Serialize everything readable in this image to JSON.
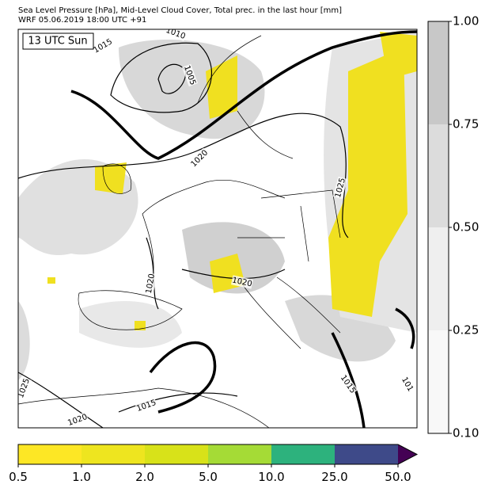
{
  "title": {
    "line1": "Sea Level Pressure [hPa], Mid-Level Cloud Cover, Total prec. in the last hour [mm]",
    "line2": "WRF 05.06.2019 18:00 UTC +91"
  },
  "time_label": "13 UTC Sun",
  "isobar_labels": [
    "1015",
    "1010",
    "1005",
    "1020",
    "1025",
    "1020",
    "1020",
    "1025",
    "1020",
    "1015",
    "1015",
    "101"
  ],
  "cloud_colorbar": {
    "ticks": [
      "1.00",
      "0.75",
      "0.50",
      "0.25",
      "0.10"
    ]
  },
  "precip_colorbar": {
    "ticks": [
      "0.5",
      "1.0",
      "2.0",
      "5.0",
      "10.0",
      "25.0",
      "50.0"
    ]
  }
}
